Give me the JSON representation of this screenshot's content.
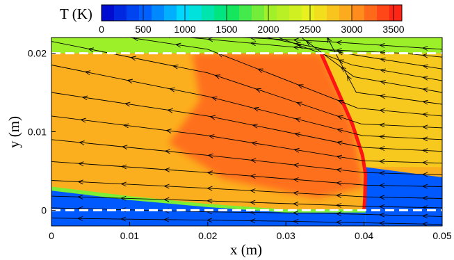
{
  "chart_data": {
    "type": "heatmap",
    "title": "",
    "xlabel": "x (m)",
    "ylabel": "y (m)",
    "xlim": [
      0,
      0.05
    ],
    "ylim": [
      -0.002,
      0.022
    ],
    "x_ticks": [
      "0",
      "0.01",
      "0.02",
      "0.03",
      "0.04",
      "0.05"
    ],
    "y_ticks": [
      "0",
      "0.01",
      "0.02"
    ],
    "x_tick_values": [
      0,
      0.01,
      0.02,
      0.03,
      0.04,
      0.05
    ],
    "y_tick_values": [
      0,
      0.01,
      0.02
    ],
    "colorbar": {
      "label": "T (K)",
      "range": [
        0,
        3600
      ],
      "tick_labels": [
        "0",
        "500",
        "1000",
        "1500",
        "2000",
        "2500",
        "3000",
        "3500"
      ],
      "tick_values": [
        0,
        500,
        1000,
        1500,
        2000,
        2500,
        3000,
        3500
      ],
      "levels": 24
    },
    "dashed_lines_y": [
      0,
      0.02
    ],
    "temperature_regions": [
      {
        "name": "upper-boundary-band",
        "y_range": [
          0.02,
          0.022
        ],
        "x_range": [
          0,
          0.05
        ],
        "T": 2000
      },
      {
        "name": "preshock-flow",
        "x_range": [
          0.034,
          0.05
        ],
        "y_range": [
          0.0055,
          0.02
        ],
        "T": 2750
      },
      {
        "name": "postshock-core",
        "x_range": [
          0.02,
          0.04
        ],
        "y_range": [
          0.002,
          0.02
        ],
        "T": 3200
      },
      {
        "name": "postshock-outer",
        "x_range": [
          0,
          0.04
        ],
        "y_range": [
          0.002,
          0.02
        ],
        "T": 2900
      },
      {
        "name": "near-wall-cold-layer",
        "y_range": [
          -0.002,
          0.001
        ],
        "x_range": [
          0,
          0.05
        ],
        "T": 500
      },
      {
        "name": "incoming-cold-jet",
        "x_range": [
          0.04,
          0.05
        ],
        "y_range": [
          -0.002,
          0.0055
        ],
        "T": 500
      },
      {
        "name": "shock-front-peak",
        "x_range": [
          0.034,
          0.0405
        ],
        "y_range": [
          0,
          0.02
        ],
        "T": 3600
      }
    ],
    "shock_front": [
      {
        "x": 0.0345,
        "y": 0.02
      },
      {
        "x": 0.0385,
        "y": 0.011
      },
      {
        "x": 0.0398,
        "y": 0.007
      },
      {
        "x": 0.0402,
        "y": 0.0045
      },
      {
        "x": 0.0401,
        "y": 0.0015
      },
      {
        "x": 0.04,
        "y": 0.0
      }
    ],
    "streamlines": [
      [
        {
          "x": 0.05,
          "y": 0.0205
        },
        {
          "x": 0.035,
          "y": 0.0215
        },
        {
          "x": 0.02,
          "y": 0.0222
        }
      ],
      [
        {
          "x": 0.05,
          "y": 0.0195
        },
        {
          "x": 0.045,
          "y": 0.02
        },
        {
          "x": 0.034,
          "y": 0.0205
        },
        {
          "x": 0.02,
          "y": 0.0218
        },
        {
          "x": 0.0,
          "y": 0.0235
        }
      ],
      [
        {
          "x": 0.05,
          "y": 0.018
        },
        {
          "x": 0.0375,
          "y": 0.02
        },
        {
          "x": 0.02,
          "y": 0.0235
        }
      ],
      [
        {
          "x": 0.05,
          "y": 0.0165
        },
        {
          "x": 0.0385,
          "y": 0.0185
        },
        {
          "x": 0.025,
          "y": 0.0235
        }
      ],
      [
        {
          "x": 0.05,
          "y": 0.015
        },
        {
          "x": 0.0387,
          "y": 0.017
        },
        {
          "x": 0.03,
          "y": 0.0235
        }
      ],
      [
        {
          "x": 0.05,
          "y": 0.0135
        },
        {
          "x": 0.039,
          "y": 0.015
        },
        {
          "x": 0.0345,
          "y": 0.0235
        }
      ],
      [
        {
          "x": 0.05,
          "y": 0.012
        },
        {
          "x": 0.0392,
          "y": 0.013
        },
        {
          "x": 0.02,
          "y": 0.0205
        },
        {
          "x": 0.0,
          "y": 0.0235
        }
      ],
      [
        {
          "x": 0.05,
          "y": 0.0105
        },
        {
          "x": 0.0396,
          "y": 0.011
        },
        {
          "x": 0.02,
          "y": 0.0175
        },
        {
          "x": 0.0,
          "y": 0.0215
        }
      ],
      [
        {
          "x": 0.05,
          "y": 0.009
        },
        {
          "x": 0.0398,
          "y": 0.0095
        },
        {
          "x": 0.02,
          "y": 0.0145
        },
        {
          "x": 0.0,
          "y": 0.0185
        }
      ],
      [
        {
          "x": 0.05,
          "y": 0.0075
        },
        {
          "x": 0.0399,
          "y": 0.008
        },
        {
          "x": 0.02,
          "y": 0.012
        },
        {
          "x": 0.0,
          "y": 0.015
        }
      ],
      [
        {
          "x": 0.05,
          "y": 0.006
        },
        {
          "x": 0.04,
          "y": 0.0063
        },
        {
          "x": 0.02,
          "y": 0.0095
        },
        {
          "x": 0.0,
          "y": 0.012
        }
      ],
      [
        {
          "x": 0.05,
          "y": 0.0045
        },
        {
          "x": 0.04,
          "y": 0.0048
        },
        {
          "x": 0.02,
          "y": 0.007
        },
        {
          "x": 0.0,
          "y": 0.009
        }
      ],
      [
        {
          "x": 0.05,
          "y": 0.003
        },
        {
          "x": 0.0402,
          "y": 0.0032
        },
        {
          "x": 0.02,
          "y": 0.0048
        },
        {
          "x": 0.0,
          "y": 0.0062
        }
      ],
      [
        {
          "x": 0.05,
          "y": 0.0015
        },
        {
          "x": 0.0403,
          "y": 0.0017
        },
        {
          "x": 0.02,
          "y": 0.0028
        },
        {
          "x": 0.0,
          "y": 0.0038
        }
      ],
      [
        {
          "x": 0.05,
          "y": 0.0003
        },
        {
          "x": 0.0403,
          "y": 0.0005
        },
        {
          "x": 0.02,
          "y": 0.0012
        },
        {
          "x": 0.0,
          "y": 0.0018
        }
      ],
      [
        {
          "x": 0.05,
          "y": -0.0008
        },
        {
          "x": 0.035,
          "y": -0.0004
        },
        {
          "x": 0.02,
          "y": -0.0002
        },
        {
          "x": 0.0,
          "y": 0.0003
        }
      ],
      [
        {
          "x": 0.05,
          "y": -0.0018
        },
        {
          "x": 0.03,
          "y": -0.0014
        },
        {
          "x": 0.0,
          "y": -0.001
        }
      ]
    ]
  }
}
